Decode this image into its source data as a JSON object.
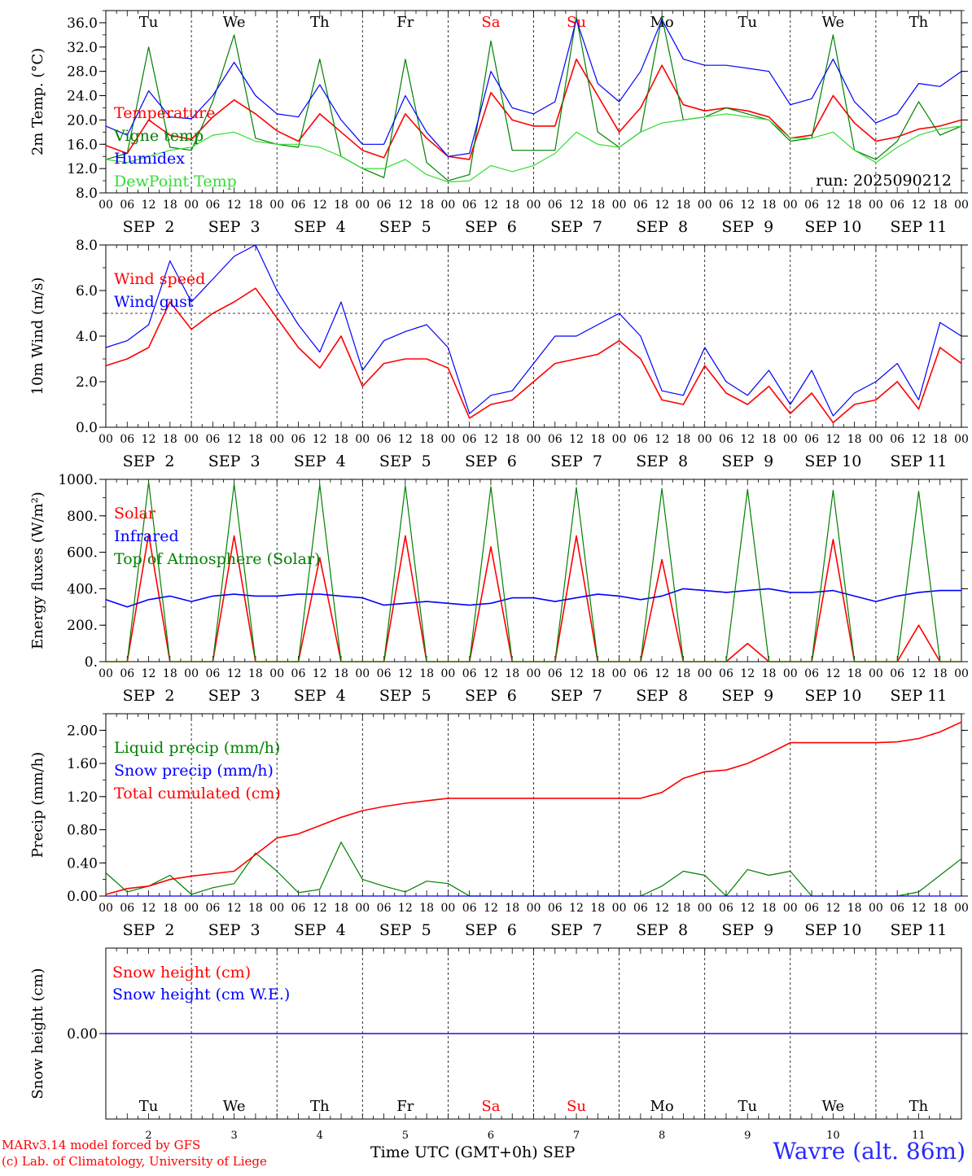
{
  "footer": {
    "credit_line1": "MARv3.14 model forced by GFS",
    "credit_line2": "(c) Lab. of Climatology, University of Liege",
    "xaxis_title": "Time UTC (GMT+0h) SEP",
    "station": "Wavre (alt. 86m)"
  },
  "colors": {
    "red": "#ff0000",
    "blue": "#0000ff",
    "green": "#008000",
    "light_green": "#33dd33",
    "station_blue": "#2a2aff"
  },
  "chart_data": [
    {
      "type": "line",
      "ylabel": "2m Temp. (°C)",
      "ylim": [
        8,
        38
      ],
      "yticks": [
        "8.0",
        "12.0",
        "16.0",
        "20.0",
        "24.0",
        "28.0",
        "32.0",
        "36.0"
      ],
      "xlim_hours": [
        0,
        240
      ],
      "day_labels": [
        "Tu",
        "We",
        "Th",
        "Fr",
        "Sa",
        "Su",
        "Mo",
        "Tu",
        "We",
        "Th"
      ],
      "day_label_colors": [
        "#000000",
        "#000000",
        "#000000",
        "#000000",
        "#ff0000",
        "#ff0000",
        "#000000",
        "#000000",
        "#000000",
        "#000000"
      ],
      "hour_ticks": [
        "00",
        "06",
        "12",
        "18"
      ],
      "date_labels": [
        "SEP  2",
        "SEP  3",
        "SEP  4",
        "SEP  5",
        "SEP  6",
        "SEP  7",
        "SEP  8",
        "SEP  9",
        "SEP 10",
        "SEP 11"
      ],
      "annotation": "run: 2025090212",
      "x_hours": [
        0,
        6,
        12,
        18,
        24,
        30,
        36,
        42,
        48,
        54,
        60,
        66,
        72,
        78,
        84,
        90,
        96,
        102,
        108,
        114,
        120,
        126,
        132,
        138,
        144,
        150,
        156,
        162,
        168,
        174,
        180,
        186,
        192,
        198,
        204,
        210,
        216,
        222,
        228,
        234,
        240
      ],
      "series": [
        {
          "name": "Temperature",
          "color": "#ff0000",
          "width": 1.6,
          "values": [
            15.8,
            14.5,
            20.0,
            17.5,
            16.8,
            20.5,
            23.3,
            21.0,
            18.2,
            16.5,
            21.0,
            18.0,
            15.0,
            13.8,
            21.0,
            17.0,
            14.0,
            13.5,
            24.5,
            20.0,
            19.0,
            19.0,
            30.0,
            24.0,
            18.0,
            22.0,
            29.0,
            22.5,
            21.5,
            22.0,
            21.5,
            20.5,
            17.0,
            17.5,
            24.0,
            19.5,
            16.5,
            17.2,
            18.5,
            19.0,
            20.0
          ]
        },
        {
          "name": "Vigne temp",
          "color": "#008000",
          "width": 1.2,
          "values": [
            13.5,
            14.5,
            32.0,
            15.5,
            15.0,
            23.0,
            34.0,
            17.0,
            16.0,
            15.5,
            30.0,
            14.0,
            12.0,
            10.5,
            30.0,
            13.0,
            10.0,
            11.0,
            33.0,
            15.0,
            15.0,
            15.0,
            37.0,
            18.0,
            15.5,
            18.0,
            37.0,
            20.0,
            20.5,
            22.0,
            21.0,
            20.0,
            16.5,
            17.0,
            34.0,
            15.0,
            13.5,
            16.5,
            23.0,
            17.5,
            19.0
          ]
        },
        {
          "name": "Humidex",
          "color": "#0000ff",
          "width": 1.2,
          "values": [
            19.0,
            17.5,
            24.8,
            20.5,
            20.2,
            24.0,
            29.5,
            24.0,
            21.0,
            20.5,
            25.8,
            20.0,
            16.0,
            16.0,
            24.0,
            18.0,
            14.0,
            14.5,
            28.0,
            22.0,
            21.0,
            23.0,
            36.5,
            26.0,
            23.0,
            28.0,
            36.5,
            30.0,
            29.0,
            29.0,
            28.5,
            28.0,
            22.5,
            23.5,
            30.0,
            23.0,
            19.5,
            21.0,
            26.0,
            25.5,
            28.0
          ]
        },
        {
          "name": "DewPoint Temp",
          "color": "#33dd33",
          "width": 1.2,
          "values": [
            13.5,
            13.0,
            14.0,
            15.0,
            15.5,
            17.5,
            18.0,
            16.5,
            16.0,
            16.0,
            15.5,
            14.0,
            12.0,
            12.0,
            13.5,
            11.0,
            9.8,
            10.0,
            12.5,
            11.5,
            12.5,
            14.5,
            18.0,
            16.0,
            15.5,
            18.0,
            19.5,
            20.0,
            20.5,
            21.0,
            20.5,
            20.0,
            17.0,
            17.0,
            18.0,
            15.0,
            13.0,
            15.5,
            17.5,
            18.5,
            19.0
          ]
        }
      ]
    },
    {
      "type": "line",
      "ylabel": "10m Wind (m/s)",
      "ylim": [
        0,
        8
      ],
      "yticks": [
        "0.0",
        "2.0",
        "4.0",
        "6.0",
        "8.0"
      ],
      "reference_line": 5.0,
      "hour_ticks": [
        "00",
        "06",
        "12",
        "18"
      ],
      "date_labels": [
        "SEP  2",
        "SEP  3",
        "SEP  4",
        "SEP  5",
        "SEP  6",
        "SEP  7",
        "SEP  8",
        "SEP  9",
        "SEP 10",
        "SEP 11"
      ],
      "x_hours": [
        0,
        6,
        12,
        18,
        24,
        30,
        36,
        42,
        48,
        54,
        60,
        66,
        72,
        78,
        84,
        90,
        96,
        102,
        108,
        114,
        120,
        126,
        132,
        138,
        144,
        150,
        156,
        162,
        168,
        174,
        180,
        186,
        192,
        198,
        204,
        210,
        216,
        222,
        228,
        234,
        240
      ],
      "series": [
        {
          "name": "Wind speed",
          "color": "#ff0000",
          "width": 1.6,
          "values": [
            2.7,
            3.0,
            3.5,
            5.5,
            4.3,
            5.0,
            5.5,
            6.1,
            4.8,
            3.5,
            2.6,
            4.0,
            1.8,
            2.8,
            3.0,
            3.0,
            2.6,
            0.4,
            1.0,
            1.2,
            2.0,
            2.8,
            3.0,
            3.2,
            3.8,
            3.0,
            1.2,
            1.0,
            2.7,
            1.5,
            1.0,
            1.8,
            0.6,
            1.5,
            0.2,
            1.0,
            1.2,
            2.0,
            0.8,
            3.5,
            2.8
          ]
        },
        {
          "name": "Wind gust",
          "color": "#0000ff",
          "width": 1.2,
          "values": [
            3.5,
            3.8,
            4.5,
            7.3,
            5.5,
            6.5,
            7.5,
            8.0,
            6.0,
            4.5,
            3.3,
            5.5,
            2.5,
            3.8,
            4.2,
            4.5,
            3.5,
            0.6,
            1.4,
            1.6,
            2.8,
            4.0,
            4.0,
            4.5,
            5.0,
            4.0,
            1.6,
            1.4,
            3.5,
            2.0,
            1.4,
            2.5,
            1.0,
            2.5,
            0.5,
            1.5,
            2.0,
            2.8,
            1.2,
            4.6,
            4.0
          ]
        }
      ]
    },
    {
      "type": "line",
      "ylabel": "Energy fluxes (W/m²)",
      "ylim": [
        0,
        1000
      ],
      "yticks": [
        "0.",
        "200.",
        "400.",
        "600.",
        "800.",
        "1000."
      ],
      "hour_ticks": [
        "00",
        "06",
        "12",
        "18"
      ],
      "date_labels": [
        "SEP  2",
        "SEP  3",
        "SEP  4",
        "SEP  5",
        "SEP  6",
        "SEP  7",
        "SEP  8",
        "SEP  9",
        "SEP 10",
        "SEP 11"
      ],
      "x_hours": [
        0,
        6,
        12,
        18,
        24,
        30,
        36,
        42,
        48,
        54,
        60,
        66,
        72,
        78,
        84,
        90,
        96,
        102,
        108,
        114,
        120,
        126,
        132,
        138,
        144,
        150,
        156,
        162,
        168,
        174,
        180,
        186,
        192,
        198,
        204,
        210,
        216,
        222,
        228,
        234,
        240
      ],
      "series": [
        {
          "name": "Solar",
          "color": "#ff0000",
          "width": 1.6,
          "values": [
            0,
            0,
            700,
            0,
            0,
            0,
            690,
            0,
            0,
            0,
            570,
            0,
            0,
            0,
            690,
            0,
            0,
            0,
            630,
            0,
            0,
            0,
            690,
            0,
            0,
            0,
            560,
            0,
            0,
            0,
            100,
            0,
            0,
            0,
            670,
            0,
            0,
            0,
            200,
            0,
            0
          ]
        },
        {
          "name": "Infrared",
          "color": "#0000ff",
          "width": 1.6,
          "values": [
            340,
            300,
            340,
            360,
            330,
            360,
            370,
            360,
            360,
            370,
            370,
            360,
            350,
            310,
            320,
            330,
            320,
            310,
            320,
            350,
            350,
            330,
            350,
            370,
            360,
            340,
            360,
            400,
            390,
            380,
            390,
            400,
            380,
            380,
            390,
            360,
            330,
            360,
            380,
            390,
            390
          ]
        },
        {
          "name": "Top of Atmosphere (Solar)",
          "color": "#008000",
          "width": 1.2,
          "values": [
            0,
            0,
            985,
            0,
            0,
            0,
            975,
            0,
            0,
            0,
            970,
            0,
            0,
            0,
            965,
            0,
            0,
            0,
            960,
            0,
            0,
            0,
            955,
            0,
            0,
            0,
            950,
            0,
            0,
            0,
            945,
            0,
            0,
            0,
            940,
            0,
            0,
            0,
            935,
            0,
            0
          ]
        }
      ]
    },
    {
      "type": "line",
      "ylabel": "Precip (mm/h)",
      "ylim": [
        0,
        2.2
      ],
      "yticks": [
        "0.00",
        "0.40",
        "0.80",
        "1.20",
        "1.60",
        "2.00"
      ],
      "hour_ticks": [
        "00",
        "06",
        "12",
        "18"
      ],
      "date_labels": [
        "SEP  2",
        "SEP  3",
        "SEP  4",
        "SEP  5",
        "SEP  6",
        "SEP  7",
        "SEP  8",
        "SEP  9",
        "SEP 10",
        "SEP 11"
      ],
      "x_hours": [
        0,
        6,
        12,
        18,
        24,
        30,
        36,
        42,
        48,
        54,
        60,
        66,
        72,
        78,
        84,
        90,
        96,
        102,
        108,
        114,
        120,
        126,
        132,
        138,
        144,
        150,
        156,
        162,
        168,
        174,
        180,
        186,
        192,
        198,
        204,
        210,
        216,
        222,
        228,
        234,
        240
      ],
      "series": [
        {
          "name": "Liquid precip (mm/h)",
          "color": "#008000",
          "width": 1.2,
          "values": [
            0.28,
            0.05,
            0.12,
            0.25,
            0.02,
            0.1,
            0.15,
            0.52,
            0.3,
            0.04,
            0.08,
            0.65,
            0.2,
            0.12,
            0.05,
            0.18,
            0.15,
            0.0,
            0.0,
            0.0,
            0.0,
            0.0,
            0.0,
            0.0,
            0.0,
            0.0,
            0.12,
            0.3,
            0.25,
            0.0,
            0.32,
            0.25,
            0.3,
            0.0,
            0.0,
            0.0,
            0.0,
            0.0,
            0.05,
            0.25,
            0.45
          ]
        },
        {
          "name": "Snow precip (mm/h)",
          "color": "#0000ff",
          "width": 1.2,
          "values": [
            0,
            0,
            0,
            0,
            0,
            0,
            0,
            0,
            0,
            0,
            0,
            0,
            0,
            0,
            0,
            0,
            0,
            0,
            0,
            0,
            0,
            0,
            0,
            0,
            0,
            0,
            0,
            0,
            0,
            0,
            0,
            0,
            0,
            0,
            0,
            0,
            0,
            0,
            0,
            0,
            0
          ]
        },
        {
          "name": "Total cumulated (cm)",
          "color": "#ff0000",
          "width": 1.6,
          "values": [
            0.02,
            0.09,
            0.12,
            0.2,
            0.24,
            0.27,
            0.3,
            0.5,
            0.7,
            0.75,
            0.85,
            0.95,
            1.03,
            1.08,
            1.12,
            1.15,
            1.18,
            1.18,
            1.18,
            1.18,
            1.18,
            1.18,
            1.18,
            1.18,
            1.18,
            1.18,
            1.25,
            1.42,
            1.5,
            1.52,
            1.6,
            1.72,
            1.85,
            1.85,
            1.85,
            1.85,
            1.85,
            1.86,
            1.9,
            1.98,
            2.1
          ]
        }
      ]
    },
    {
      "type": "line",
      "ylabel": "Snow height (cm)",
      "ylim": [
        -1,
        1
      ],
      "yticks": [
        "0.00"
      ],
      "day_labels": [
        "Tu",
        "We",
        "Th",
        "Fr",
        "Sa",
        "Su",
        "Mo",
        "Tu",
        "We",
        "Th"
      ],
      "day_label_colors": [
        "#000000",
        "#000000",
        "#000000",
        "#000000",
        "#ff0000",
        "#ff0000",
        "#000000",
        "#000000",
        "#000000",
        "#000000"
      ],
      "day_numbers": [
        "2",
        "3",
        "4",
        "5",
        "6",
        "7",
        "8",
        "9",
        "10",
        "11"
      ],
      "x_hours": [
        0,
        240
      ],
      "series": [
        {
          "name": "Snow height (cm)",
          "color": "#ff0000",
          "width": 1.2,
          "values": [
            0,
            0
          ]
        },
        {
          "name": "Snow height (cm W.E.)",
          "color": "#0000ff",
          "width": 1.2,
          "values": [
            0,
            0
          ]
        }
      ]
    }
  ]
}
